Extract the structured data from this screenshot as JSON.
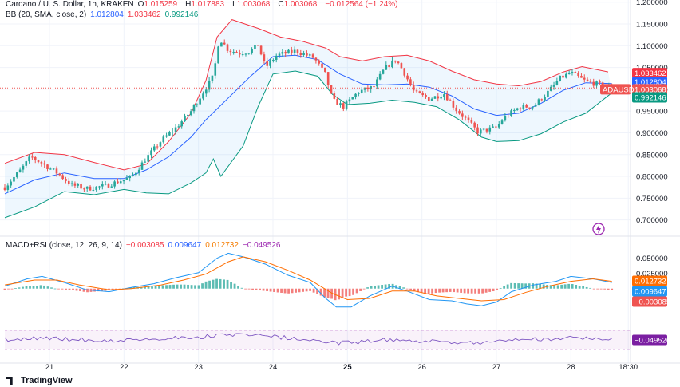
{
  "header": {
    "symbol": "Cardano / U. S. Dollar, 1h, KRAKEN",
    "o_label": "O",
    "o": "1.015259",
    "h_label": "H",
    "h": "1.017883",
    "l_label": "L",
    "l": "1.003068",
    "c_label": "C",
    "c": "1.003068",
    "change": "−0.012564 (−1.24%)"
  },
  "bb_legend": {
    "label": "BB (20, SMA, close, 2)",
    "basis": "1.012804",
    "upper": "1.033462",
    "lower": "0.992146"
  },
  "macd_legend": {
    "label": "MACD+RSI (close, 12, 26, 9, 14)",
    "hist": "−0.003085",
    "macd": "0.009647",
    "signal": "0.012732",
    "rsi": "−0.049526"
  },
  "price_badges": {
    "symbol": "ADAUSD",
    "last": "1.003068",
    "upper": "1.033462",
    "basis": "1.012804",
    "lower": "0.992146"
  },
  "macd_badges": {
    "signal": "0.012732",
    "macd": "0.009647",
    "hist": "−0.003085",
    "rsi": "−0.049526"
  },
  "price_axis": [
    "1.200000",
    "1.150000",
    "1.100000",
    "1.050000",
    "1.000000",
    "0.950000",
    "0.900000",
    "0.850000",
    "0.800000",
    "0.750000",
    "0.700000"
  ],
  "macd_axis": [
    "0.050000",
    "0.025000"
  ],
  "time_axis": [
    "21",
    "22",
    "23",
    "24",
    "25",
    "26",
    "27",
    "28",
    "18:30"
  ],
  "branding": "TradingView",
  "colors": {
    "up": "#26a69a",
    "down": "#ef5350",
    "upper": "#f23645",
    "lower": "#089981",
    "basis": "#2962ff",
    "macd": "#2196f3",
    "signal": "#ff6d00",
    "rsi": "#7e57c2"
  },
  "chart_data": {
    "type": "candlestick",
    "title": "Cardano / U. S. Dollar, 1h, KRAKEN",
    "price_range": [
      0.67,
      1.205
    ],
    "macd_range": [
      -0.05,
      0.065
    ],
    "time_range_days": [
      20.4,
      28.8
    ],
    "price_keypoints": [
      [
        20.4,
        0.775
      ],
      [
        20.6,
        0.812
      ],
      [
        20.75,
        0.845
      ],
      [
        20.9,
        0.83
      ],
      [
        21.1,
        0.808
      ],
      [
        21.3,
        0.78
      ],
      [
        21.5,
        0.772
      ],
      [
        21.75,
        0.778
      ],
      [
        21.95,
        0.79
      ],
      [
        22.1,
        0.798
      ],
      [
        22.3,
        0.842
      ],
      [
        22.5,
        0.882
      ],
      [
        22.7,
        0.912
      ],
      [
        22.9,
        0.95
      ],
      [
        23.05,
        0.99
      ],
      [
        23.2,
        1.03
      ],
      [
        23.28,
        1.118
      ],
      [
        23.4,
        1.09
      ],
      [
        23.55,
        1.083
      ],
      [
        23.7,
        1.088
      ],
      [
        23.8,
        1.102
      ],
      [
        23.9,
        1.05
      ],
      [
        24.05,
        1.078
      ],
      [
        24.3,
        1.088
      ],
      [
        24.55,
        1.072
      ],
      [
        24.7,
        1.035
      ],
      [
        24.8,
        0.975
      ],
      [
        24.95,
        0.96
      ],
      [
        25.15,
        0.995
      ],
      [
        25.35,
        1.005
      ],
      [
        25.5,
        1.048
      ],
      [
        25.65,
        1.068
      ],
      [
        25.75,
        1.042
      ],
      [
        25.9,
        0.992
      ],
      [
        26.1,
        0.978
      ],
      [
        26.3,
        0.99
      ],
      [
        26.45,
        0.955
      ],
      [
        26.6,
        0.93
      ],
      [
        26.75,
        0.902
      ],
      [
        26.9,
        0.908
      ],
      [
        27.0,
        0.912
      ],
      [
        27.1,
        0.935
      ],
      [
        27.3,
        0.958
      ],
      [
        27.5,
        0.962
      ],
      [
        27.7,
        0.995
      ],
      [
        27.85,
        1.025
      ],
      [
        28.0,
        1.038
      ],
      [
        28.2,
        1.018
      ],
      [
        28.35,
        1.012
      ],
      [
        28.55,
        1.003
      ]
    ],
    "bb_upper": [
      [
        20.4,
        0.83
      ],
      [
        20.8,
        0.855
      ],
      [
        21.2,
        0.85
      ],
      [
        21.6,
        0.832
      ],
      [
        22.0,
        0.815
      ],
      [
        22.3,
        0.828
      ],
      [
        22.6,
        0.88
      ],
      [
        22.9,
        0.945
      ],
      [
        23.1,
        1.02
      ],
      [
        23.25,
        1.12
      ],
      [
        23.45,
        1.16
      ],
      [
        23.8,
        1.14
      ],
      [
        24.1,
        1.12
      ],
      [
        24.4,
        1.11
      ],
      [
        24.7,
        1.095
      ],
      [
        24.9,
        1.075
      ],
      [
        25.2,
        1.065
      ],
      [
        25.5,
        1.075
      ],
      [
        25.8,
        1.078
      ],
      [
        26.1,
        1.065
      ],
      [
        26.4,
        1.042
      ],
      [
        26.7,
        1.022
      ],
      [
        27.0,
        1.012
      ],
      [
        27.3,
        1.008
      ],
      [
        27.6,
        1.018
      ],
      [
        27.9,
        1.04
      ],
      [
        28.15,
        1.052
      ],
      [
        28.5,
        1.04
      ]
    ],
    "bb_basis": [
      [
        20.4,
        0.76
      ],
      [
        20.8,
        0.792
      ],
      [
        21.2,
        0.808
      ],
      [
        21.6,
        0.795
      ],
      [
        22.0,
        0.795
      ],
      [
        22.3,
        0.815
      ],
      [
        22.6,
        0.845
      ],
      [
        22.9,
        0.89
      ],
      [
        23.1,
        0.93
      ],
      [
        23.4,
        0.98
      ],
      [
        23.7,
        1.03
      ],
      [
        24.0,
        1.075
      ],
      [
        24.3,
        1.078
      ],
      [
        24.6,
        1.068
      ],
      [
        24.9,
        1.035
      ],
      [
        25.2,
        1.012
      ],
      [
        25.5,
        1.01
      ],
      [
        25.8,
        1.012
      ],
      [
        26.1,
        1.005
      ],
      [
        26.4,
        0.985
      ],
      [
        26.7,
        0.955
      ],
      [
        27.0,
        0.94
      ],
      [
        27.3,
        0.945
      ],
      [
        27.6,
        0.968
      ],
      [
        27.9,
        0.998
      ],
      [
        28.2,
        1.015
      ],
      [
        28.55,
        1.013
      ]
    ],
    "bb_lower": [
      [
        20.4,
        0.705
      ],
      [
        20.8,
        0.73
      ],
      [
        21.2,
        0.765
      ],
      [
        21.6,
        0.758
      ],
      [
        22.0,
        0.77
      ],
      [
        22.3,
        0.762
      ],
      [
        22.6,
        0.76
      ],
      [
        22.9,
        0.785
      ],
      [
        23.1,
        0.808
      ],
      [
        23.2,
        0.84
      ],
      [
        23.3,
        0.8
      ],
      [
        23.6,
        0.87
      ],
      [
        23.8,
        0.96
      ],
      [
        24.0,
        1.035
      ],
      [
        24.3,
        1.042
      ],
      [
        24.6,
        1.03
      ],
      [
        24.8,
        0.988
      ],
      [
        25.0,
        0.965
      ],
      [
        25.3,
        0.968
      ],
      [
        25.6,
        0.975
      ],
      [
        25.9,
        0.97
      ],
      [
        26.2,
        0.96
      ],
      [
        26.5,
        0.93
      ],
      [
        26.8,
        0.89
      ],
      [
        27.0,
        0.88
      ],
      [
        27.3,
        0.882
      ],
      [
        27.6,
        0.898
      ],
      [
        27.9,
        0.925
      ],
      [
        28.2,
        0.945
      ],
      [
        28.55,
        0.992
      ]
    ],
    "macd_line": [
      [
        20.4,
        0.004
      ],
      [
        20.7,
        0.016
      ],
      [
        20.9,
        0.02
      ],
      [
        21.2,
        0.01
      ],
      [
        21.5,
        -0.002
      ],
      [
        21.8,
        -0.005
      ],
      [
        22.1,
        0.002
      ],
      [
        22.4,
        0.008
      ],
      [
        22.7,
        0.018
      ],
      [
        23.0,
        0.026
      ],
      [
        23.25,
        0.05
      ],
      [
        23.4,
        0.058
      ],
      [
        23.6,
        0.052
      ],
      [
        23.9,
        0.04
      ],
      [
        24.2,
        0.022
      ],
      [
        24.5,
        0.01
      ],
      [
        24.7,
        -0.015
      ],
      [
        24.85,
        -0.03
      ],
      [
        25.05,
        -0.03
      ],
      [
        25.3,
        -0.012
      ],
      [
        25.6,
        0.004
      ],
      [
        25.8,
        -0.004
      ],
      [
        26.1,
        -0.018
      ],
      [
        26.4,
        -0.02
      ],
      [
        26.6,
        -0.025
      ],
      [
        26.8,
        -0.028
      ],
      [
        27.0,
        -0.022
      ],
      [
        27.2,
        -0.005
      ],
      [
        27.5,
        0.006
      ],
      [
        27.8,
        0.012
      ],
      [
        28.0,
        0.02
      ],
      [
        28.3,
        0.016
      ],
      [
        28.55,
        0.01
      ]
    ],
    "macd_signal": [
      [
        20.4,
        0.006
      ],
      [
        20.8,
        0.014
      ],
      [
        21.1,
        0.014
      ],
      [
        21.4,
        0.006
      ],
      [
        21.8,
        -0.002
      ],
      [
        22.1,
        0.0
      ],
      [
        22.5,
        0.006
      ],
      [
        22.8,
        0.014
      ],
      [
        23.1,
        0.024
      ],
      [
        23.4,
        0.044
      ],
      [
        23.6,
        0.052
      ],
      [
        23.9,
        0.044
      ],
      [
        24.2,
        0.03
      ],
      [
        24.5,
        0.014
      ],
      [
        24.8,
        -0.008
      ],
      [
        25.0,
        -0.018
      ],
      [
        25.3,
        -0.016
      ],
      [
        25.6,
        -0.004
      ],
      [
        25.9,
        -0.004
      ],
      [
        26.2,
        -0.012
      ],
      [
        26.5,
        -0.016
      ],
      [
        26.8,
        -0.02
      ],
      [
        27.1,
        -0.018
      ],
      [
        27.4,
        -0.006
      ],
      [
        27.7,
        0.004
      ],
      [
        28.0,
        0.012
      ],
      [
        28.3,
        0.016
      ],
      [
        28.55,
        0.012
      ]
    ],
    "rsi_band": [
      0.0,
      -0.1
    ]
  }
}
